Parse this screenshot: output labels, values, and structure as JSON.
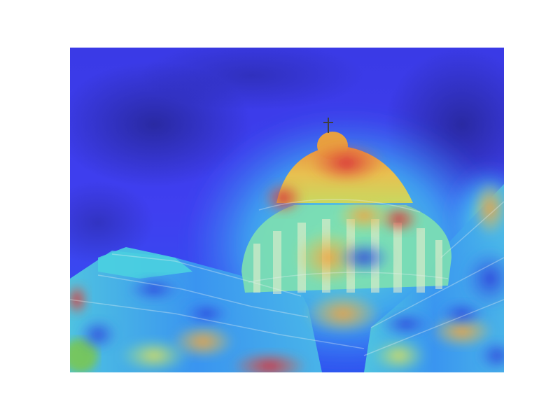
{
  "figure": {
    "subject": "domed-capitol-building",
    "overlay": "attention-heatmap",
    "colormap": [
      "#1a1aa8",
      "#2f3cf0",
      "#3d8cf5",
      "#35d8e8",
      "#6fe8a0",
      "#e8e858",
      "#f2b43c",
      "#e86838",
      "#d8303c"
    ],
    "background_color": "#ffffff"
  }
}
